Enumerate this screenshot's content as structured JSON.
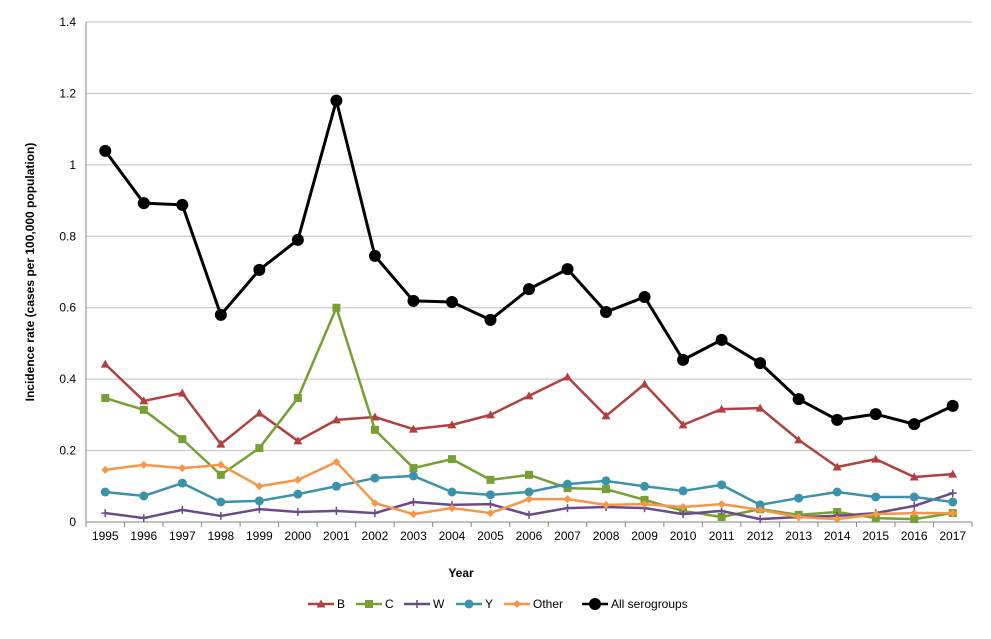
{
  "chart_data": {
    "type": "line",
    "title": "",
    "xlabel": "Year",
    "ylabel": "Incidence rate (cases per 100,000 population)",
    "ylim": [
      0,
      1.4
    ],
    "yticks": [
      "0",
      "0.2",
      "0.4",
      "0.6",
      "0.8",
      "1",
      "1.2",
      "1.4"
    ],
    "grid": true,
    "legend": "bottom",
    "categories": [
      "1995",
      "1996",
      "1997",
      "1998",
      "1999",
      "2000",
      "2001",
      "2002",
      "2003",
      "2004",
      "2005",
      "2006",
      "2007",
      "2008",
      "2009",
      "2010",
      "2011",
      "2012",
      "2013",
      "2014",
      "2015",
      "2016",
      "2017"
    ],
    "series": [
      {
        "name": "B",
        "color": "#b0413e",
        "marker": "triangle",
        "values": [
          0.442,
          0.339,
          0.361,
          0.218,
          0.305,
          0.227,
          0.286,
          0.294,
          0.26,
          0.272,
          0.3,
          0.353,
          0.406,
          0.297,
          0.386,
          0.272,
          0.316,
          0.319,
          0.23,
          0.154,
          0.176,
          0.126,
          0.134
        ]
      },
      {
        "name": "C",
        "color": "#77a033",
        "marker": "square",
        "values": [
          0.347,
          0.314,
          0.232,
          0.132,
          0.207,
          0.347,
          0.6,
          0.258,
          0.151,
          0.176,
          0.118,
          0.132,
          0.095,
          0.092,
          0.062,
          0.031,
          0.014,
          0.036,
          0.02,
          0.028,
          0.011,
          0.008,
          0.025
        ]
      },
      {
        "name": "W",
        "color": "#6a4a8c",
        "marker": "plus",
        "values": [
          0.025,
          0.011,
          0.034,
          0.017,
          0.036,
          0.028,
          0.031,
          0.025,
          0.056,
          0.048,
          0.05,
          0.02,
          0.039,
          0.042,
          0.039,
          0.022,
          0.031,
          0.008,
          0.014,
          0.017,
          0.025,
          0.045,
          0.081
        ]
      },
      {
        "name": "Y",
        "color": "#3a93ab",
        "marker": "circle",
        "values": [
          0.084,
          0.073,
          0.109,
          0.056,
          0.059,
          0.078,
          0.1,
          0.123,
          0.129,
          0.084,
          0.076,
          0.084,
          0.106,
          0.115,
          0.1,
          0.087,
          0.104,
          0.048,
          0.067,
          0.084,
          0.07,
          0.07,
          0.056
        ]
      },
      {
        "name": "Other",
        "color": "#f79646",
        "marker": "diamond",
        "values": [
          0.146,
          0.16,
          0.151,
          0.16,
          0.1,
          0.118,
          0.168,
          0.053,
          0.022,
          0.039,
          0.025,
          0.064,
          0.064,
          0.048,
          0.05,
          0.042,
          0.05,
          0.034,
          0.014,
          0.008,
          0.022,
          0.025,
          0.025
        ]
      },
      {
        "name": "All serogroups",
        "color": "#000000",
        "marker": "bigcircle",
        "values": [
          1.039,
          0.893,
          0.888,
          0.58,
          0.706,
          0.79,
          1.18,
          0.745,
          0.619,
          0.616,
          0.566,
          0.652,
          0.708,
          0.588,
          0.63,
          0.454,
          0.51,
          0.445,
          0.344,
          0.286,
          0.302,
          0.274,
          0.325
        ]
      }
    ]
  }
}
